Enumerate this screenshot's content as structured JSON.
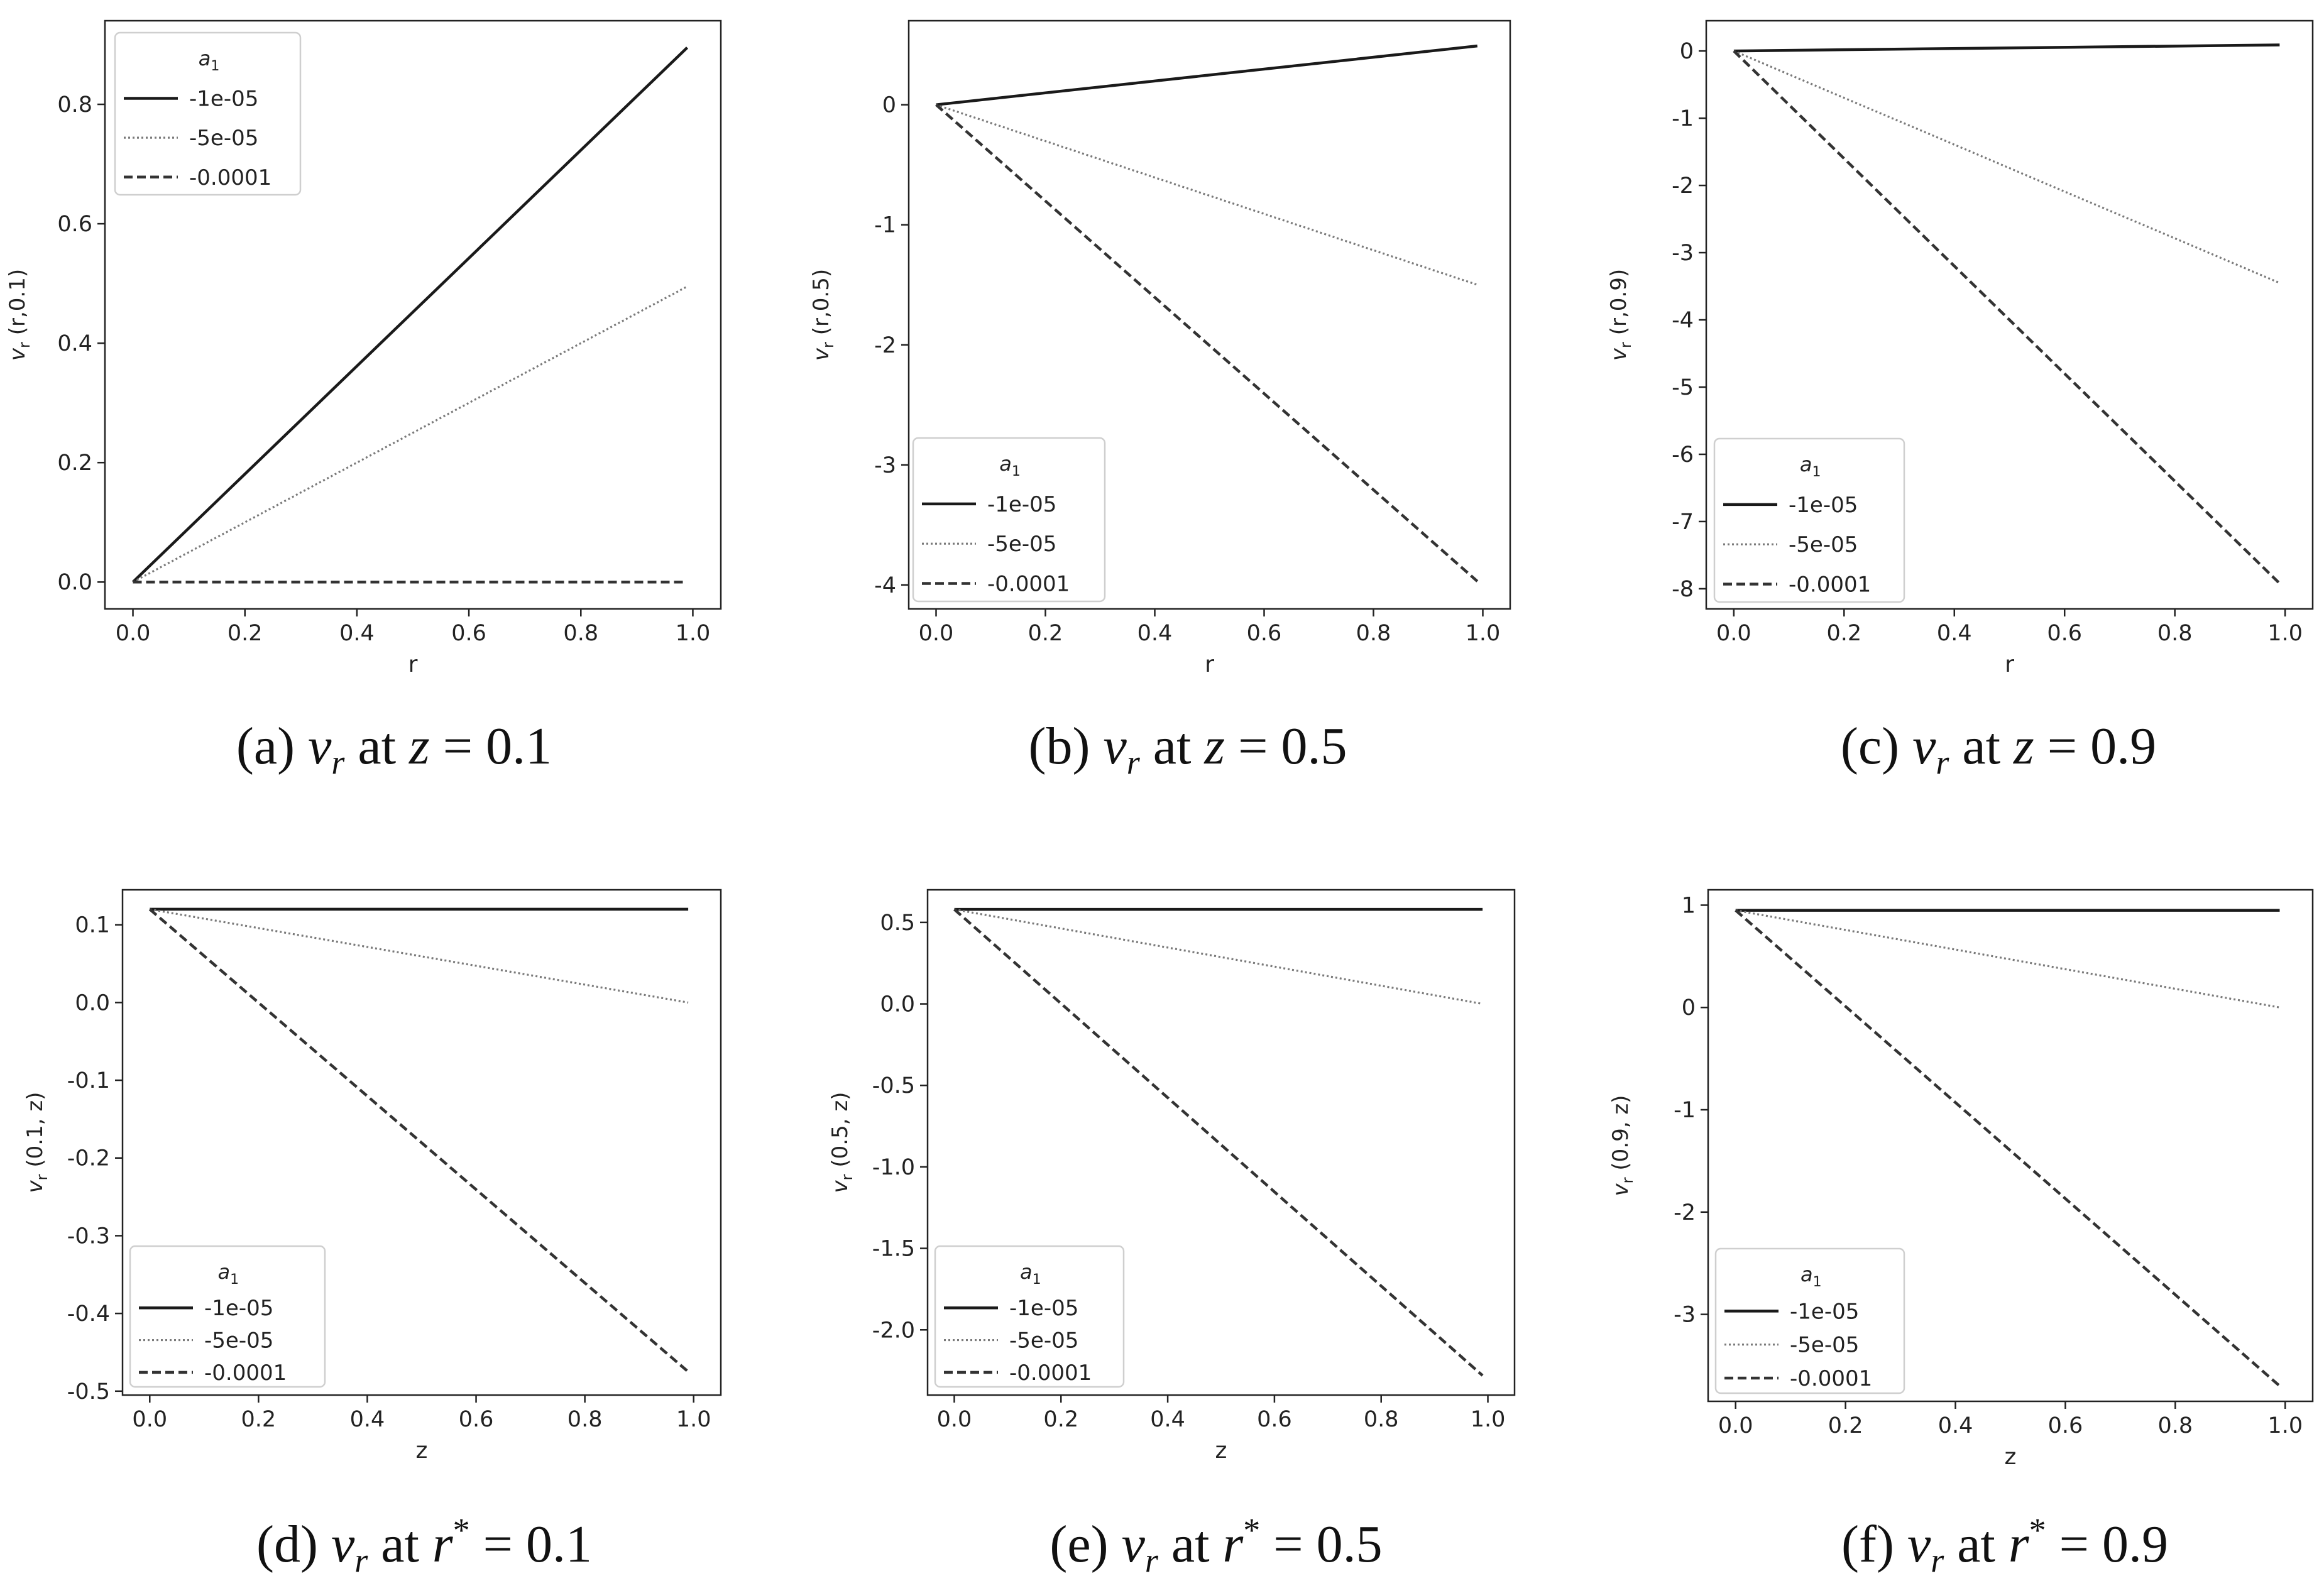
{
  "chart_data": [
    {
      "type": "line",
      "xlabel": "r",
      "ylabel": "v_r (r,0.1)",
      "caption": {
        "prefix": "(a)",
        "var": "v",
        "sub": "r",
        "mid": "at",
        "coord": "z",
        "sup": "",
        "value": "= 0.1"
      },
      "xlim": [
        -0.05,
        1.05
      ],
      "ylim": [
        -0.045,
        0.94
      ],
      "xticks": [
        "0.0",
        "0.2",
        "0.4",
        "0.6",
        "0.8",
        "1.0"
      ],
      "yticks": [
        "0.0",
        "0.2",
        "0.4",
        "0.6",
        "0.8"
      ],
      "legend": {
        "title": "a",
        "title_sub": "1",
        "placement": "top-left"
      },
      "series": [
        {
          "name": "-1e-05",
          "style": "solid",
          "x": [
            0,
            0.99
          ],
          "y": [
            0.0,
            0.895
          ]
        },
        {
          "name": "-5e-05",
          "style": "dotted",
          "x": [
            0,
            0.99
          ],
          "y": [
            0.0,
            0.495
          ]
        },
        {
          "name": "-0.0001",
          "style": "dashed",
          "x": [
            0,
            0.99
          ],
          "y": [
            0.0,
            0.0
          ]
        }
      ]
    },
    {
      "type": "line",
      "xlabel": "r",
      "ylabel": "v_r (r,0.5)",
      "caption": {
        "prefix": "(b)",
        "var": "v",
        "sub": "r",
        "mid": "at",
        "coord": "z",
        "sup": "",
        "value": "= 0.5"
      },
      "xlim": [
        -0.05,
        1.05
      ],
      "ylim": [
        -4.2,
        0.7
      ],
      "xticks": [
        "0.0",
        "0.2",
        "0.4",
        "0.6",
        "0.8",
        "1.0"
      ],
      "yticks": [
        "0",
        "-1",
        "-2",
        "-3",
        "-4"
      ],
      "legend": {
        "title": "a",
        "title_sub": "1",
        "placement": "lower-left"
      },
      "series": [
        {
          "name": "-1e-05",
          "style": "solid",
          "x": [
            0,
            0.99
          ],
          "y": [
            0.0,
            0.49
          ]
        },
        {
          "name": "-5e-05",
          "style": "dotted",
          "x": [
            0,
            0.99
          ],
          "y": [
            0.0,
            -1.5
          ]
        },
        {
          "name": "-0.0001",
          "style": "dashed",
          "x": [
            0,
            0.99
          ],
          "y": [
            0.0,
            -3.97
          ]
        }
      ]
    },
    {
      "type": "line",
      "xlabel": "r",
      "ylabel": "v_r (r,0.9)",
      "caption": {
        "prefix": "(c)",
        "var": "v",
        "sub": "r",
        "mid": "at",
        "coord": "z",
        "sup": "",
        "value": "= 0.9"
      },
      "xlim": [
        -0.05,
        1.05
      ],
      "ylim": [
        -8.3,
        0.45
      ],
      "xticks": [
        "0.0",
        "0.2",
        "0.4",
        "0.6",
        "0.8",
        "1.0"
      ],
      "yticks": [
        "0",
        "-1",
        "-2",
        "-3",
        "-4",
        "-5",
        "-6",
        "-7",
        "-8"
      ],
      "legend": {
        "title": "a",
        "title_sub": "1",
        "placement": "lower-left"
      },
      "series": [
        {
          "name": "-1e-05",
          "style": "solid",
          "x": [
            0,
            0.99
          ],
          "y": [
            0.0,
            0.09
          ]
        },
        {
          "name": "-5e-05",
          "style": "dotted",
          "x": [
            0,
            0.99
          ],
          "y": [
            0.0,
            -3.45
          ]
        },
        {
          "name": "-0.0001",
          "style": "dashed",
          "x": [
            0,
            0.99
          ],
          "y": [
            0.0,
            -7.92
          ]
        }
      ]
    },
    {
      "type": "line",
      "xlabel": "z",
      "ylabel": "v_r (0.1, z)",
      "caption": {
        "prefix": "(d)",
        "var": "v",
        "sub": "r",
        "mid": "at",
        "coord": "r",
        "sup": "*",
        "value": "= 0.1"
      },
      "xlim": [
        -0.05,
        1.05
      ],
      "ylim": [
        -0.505,
        0.145
      ],
      "xticks": [
        "0.0",
        "0.2",
        "0.4",
        "0.6",
        "0.8",
        "1.0"
      ],
      "yticks": [
        "0.1",
        "0.0",
        "-0.1",
        "-0.2",
        "-0.3",
        "-0.4",
        "-0.5"
      ],
      "legend": {
        "title": "a",
        "title_sub": "1",
        "placement": "lower-left"
      },
      "series": [
        {
          "name": "-1e-05",
          "style": "solid",
          "x": [
            0,
            0.99
          ],
          "y": [
            0.12,
            0.12
          ]
        },
        {
          "name": "-5e-05",
          "style": "dotted",
          "x": [
            0,
            0.99
          ],
          "y": [
            0.12,
            0.0
          ]
        },
        {
          "name": "-0.0001",
          "style": "dashed",
          "x": [
            0,
            0.99
          ],
          "y": [
            0.12,
            -0.475
          ]
        }
      ]
    },
    {
      "type": "line",
      "xlabel": "z",
      "ylabel": "v_r (0.5, z)",
      "caption": {
        "prefix": "(e)",
        "var": "v",
        "sub": "r",
        "mid": "at",
        "coord": "r",
        "sup": "*",
        "value": "= 0.5"
      },
      "xlim": [
        -0.05,
        1.05
      ],
      "ylim": [
        -2.4,
        0.7
      ],
      "xticks": [
        "0.0",
        "0.2",
        "0.4",
        "0.6",
        "0.8",
        "1.0"
      ],
      "yticks": [
        "0.5",
        "0.0",
        "-0.5",
        "-1.0",
        "-1.5",
        "-2.0"
      ],
      "legend": {
        "title": "a",
        "title_sub": "1",
        "placement": "lower-left"
      },
      "series": [
        {
          "name": "-1e-05",
          "style": "solid",
          "x": [
            0,
            0.99
          ],
          "y": [
            0.58,
            0.58
          ]
        },
        {
          "name": "-5e-05",
          "style": "dotted",
          "x": [
            0,
            0.99
          ],
          "y": [
            0.58,
            0.0
          ]
        },
        {
          "name": "-0.0001",
          "style": "dashed",
          "x": [
            0,
            0.99
          ],
          "y": [
            0.58,
            -2.28
          ]
        }
      ]
    },
    {
      "type": "line",
      "xlabel": "z",
      "ylabel": "v_r (0.9, z)",
      "caption": {
        "prefix": "(f)",
        "var": "v",
        "sub": "r",
        "mid": "at",
        "coord": "r",
        "sup": "*",
        "value": "= 0.9"
      },
      "xlim": [
        -0.05,
        1.05
      ],
      "ylim": [
        -3.85,
        1.15
      ],
      "xticks": [
        "0.0",
        "0.2",
        "0.4",
        "0.6",
        "0.8",
        "1.0"
      ],
      "yticks": [
        "1",
        "0",
        "-1",
        "-2",
        "-3"
      ],
      "legend": {
        "title": "a",
        "title_sub": "1",
        "placement": "lower-left"
      },
      "series": [
        {
          "name": "-1e-05",
          "style": "solid",
          "x": [
            0,
            0.99
          ],
          "y": [
            0.95,
            0.95
          ]
        },
        {
          "name": "-5e-05",
          "style": "dotted",
          "x": [
            0,
            0.99
          ],
          "y": [
            0.95,
            0.0
          ]
        },
        {
          "name": "-0.0001",
          "style": "dashed",
          "x": [
            0,
            0.99
          ],
          "y": [
            0.95,
            -3.7
          ]
        }
      ]
    }
  ]
}
